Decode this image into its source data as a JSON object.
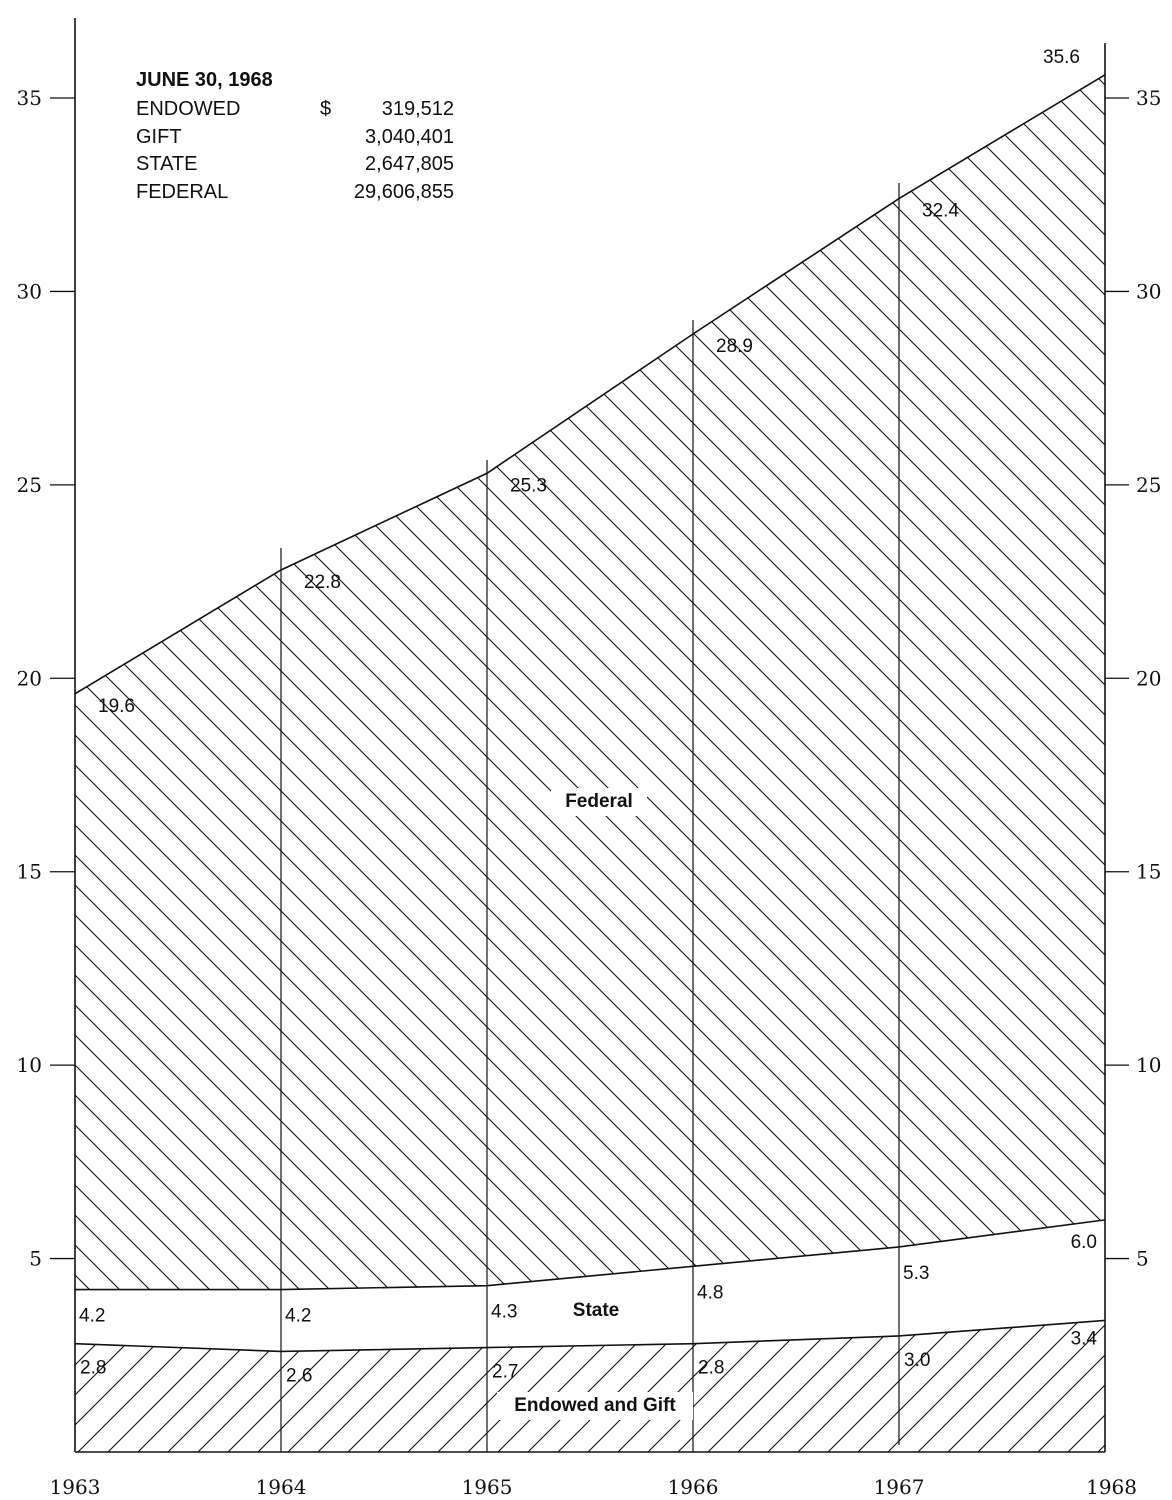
{
  "chart_data": {
    "type": "area",
    "x": [
      "1963",
      "1964",
      "1965",
      "1966",
      "1967",
      "1968"
    ],
    "ylim": [
      0,
      37
    ],
    "yticks": [
      5,
      10,
      15,
      20,
      25,
      30,
      35
    ],
    "grid": false,
    "series": [
      {
        "name": "Endowed and Gift",
        "values": [
          2.8,
          2.6,
          2.7,
          2.8,
          3.0,
          3.4
        ],
        "fill": "hatch-forward"
      },
      {
        "name": "State",
        "values": [
          4.2,
          4.2,
          4.3,
          4.8,
          5.3,
          6.0
        ],
        "fill": "none"
      },
      {
        "name": "Federal",
        "values": [
          19.6,
          22.8,
          25.3,
          28.9,
          32.4,
          35.6
        ],
        "fill": "hatch-back"
      }
    ]
  },
  "legend_box": {
    "title": "JUNE 30, 1968",
    "currency": "$",
    "rows": [
      {
        "label": "ENDOWED",
        "value": "319,512"
      },
      {
        "label": "GIFT",
        "value": "3,040,401"
      },
      {
        "label": "STATE",
        "value": "2,647,805"
      },
      {
        "label": "FEDERAL",
        "value": "29,606,855"
      }
    ]
  },
  "colors": {
    "ink": "#111111",
    "background": "#ffffff"
  }
}
